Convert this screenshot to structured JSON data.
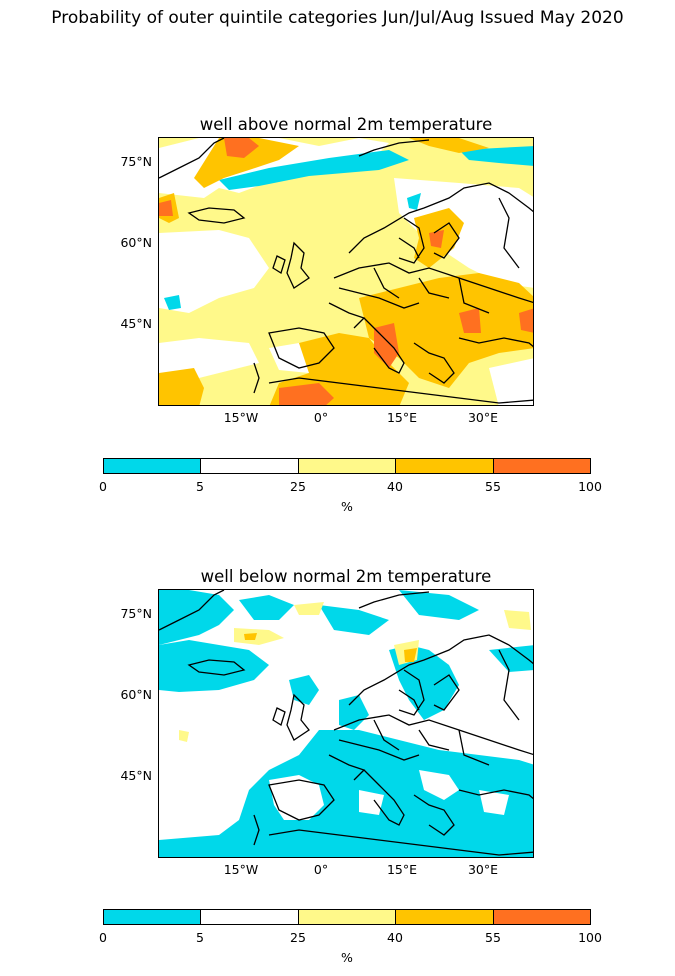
{
  "figure": {
    "title": "Probability of outer quintile categories Jun/Jul/Aug Issued May 2020"
  },
  "colors": {
    "c0_5": "#00d8ea",
    "c5_25": "#ffffff",
    "c25_40": "#fff98a",
    "c40_55": "#ffc400",
    "c55_100": "#ff7020",
    "coast": "#000000"
  },
  "axes": {
    "lat_ticks": [
      "75°N",
      "60°N",
      "45°N"
    ],
    "lon_ticks": [
      "15°W",
      "0°",
      "15°E",
      "30°E"
    ]
  },
  "panels": [
    {
      "title": "well above normal 2m temperature",
      "dominant": "warm"
    },
    {
      "title": "well below normal 2m temperature",
      "dominant": "cold"
    }
  ],
  "colorbar": {
    "ticks": [
      "0",
      "5",
      "25",
      "40",
      "55",
      "100"
    ],
    "unit": "%"
  }
}
